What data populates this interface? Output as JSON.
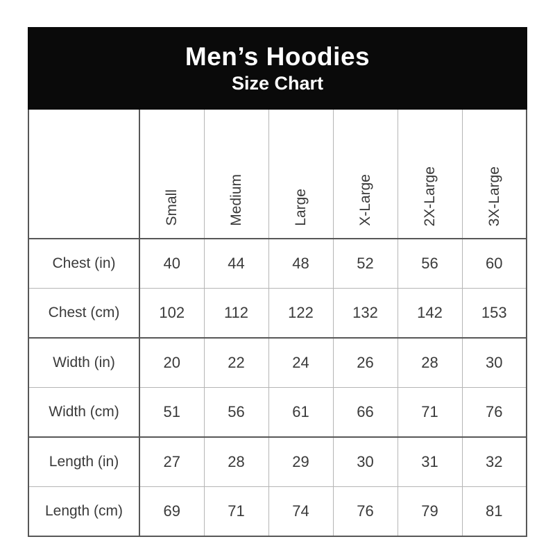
{
  "chart_data": {
    "type": "table",
    "title": "Men’s Hoodies",
    "subtitle": "Size Chart",
    "columns": [
      "Small",
      "Medium",
      "Large",
      "X-Large",
      "2X-Large",
      "3X-Large"
    ],
    "rows": [
      {
        "label": "Chest (in)",
        "values": [
          40,
          44,
          48,
          52,
          56,
          60
        ]
      },
      {
        "label": "Chest (cm)",
        "values": [
          102,
          112,
          122,
          132,
          142,
          153
        ]
      },
      {
        "label": "Width (in)",
        "values": [
          20,
          22,
          24,
          26,
          28,
          30
        ]
      },
      {
        "label": "Width (cm)",
        "values": [
          51,
          56,
          61,
          66,
          71,
          76
        ]
      },
      {
        "label": "Length (in)",
        "values": [
          27,
          28,
          29,
          30,
          31,
          32
        ]
      },
      {
        "label": "Length (cm)",
        "values": [
          69,
          71,
          74,
          76,
          79,
          81
        ]
      }
    ],
    "layout": {
      "grid": true,
      "column_header_orientation": "vertical-bottom-to-top",
      "row_groups": [
        [
          "Chest (in)",
          "Chest (cm)"
        ],
        [
          "Width (in)",
          "Width (cm)"
        ],
        [
          "Length (in)",
          "Length (cm)"
        ]
      ]
    },
    "colors": {
      "title_band_bg": "#0a0a0a",
      "title_band_text": "#ffffff",
      "grid_thick": "#575757",
      "grid_thin": "#b5b5b5",
      "cell_text": "#3a3a3a",
      "cell_bg": "#ffffff"
    }
  }
}
